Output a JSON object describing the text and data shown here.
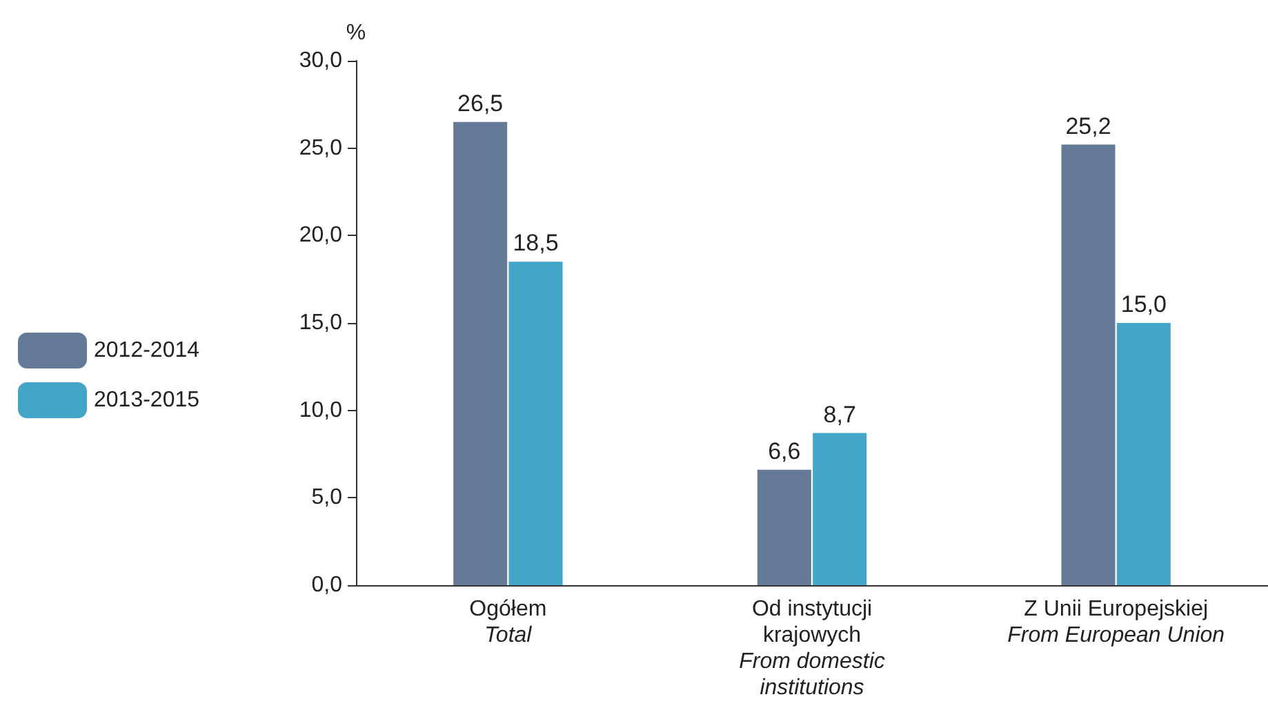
{
  "chart_data": {
    "type": "bar",
    "ylabel": "%",
    "categories": [
      "Ogółem\nTotal",
      "Od instytucji\nkrajowych\nFrom domestic\ninstitutions",
      "Z Unii Europejskiej\nFrom European Union"
    ],
    "series": [
      {
        "name": "2012-2014",
        "color": "#647a96",
        "values": [
          26.5,
          6.6,
          25.2
        ],
        "value_labels": [
          "26,5",
          "6,6",
          "25,2"
        ]
      },
      {
        "name": "2013-2015",
        "color": "#43a6c9",
        "values": [
          18.5,
          8.7,
          15.0
        ],
        "value_labels": [
          "18,5",
          "8,7",
          "15,0"
        ]
      }
    ],
    "ylim": [
      0,
      30
    ],
    "yticks": [
      {
        "value": 0,
        "label": "0,0"
      },
      {
        "value": 5,
        "label": "5,0"
      },
      {
        "value": 10,
        "label": "10,0"
      },
      {
        "value": 15,
        "label": "15,0"
      },
      {
        "value": 20,
        "label": "20,0"
      },
      {
        "value": 25,
        "label": "25,0"
      },
      {
        "value": 30,
        "label": "30,0"
      }
    ],
    "grid": false,
    "legend": "left"
  }
}
